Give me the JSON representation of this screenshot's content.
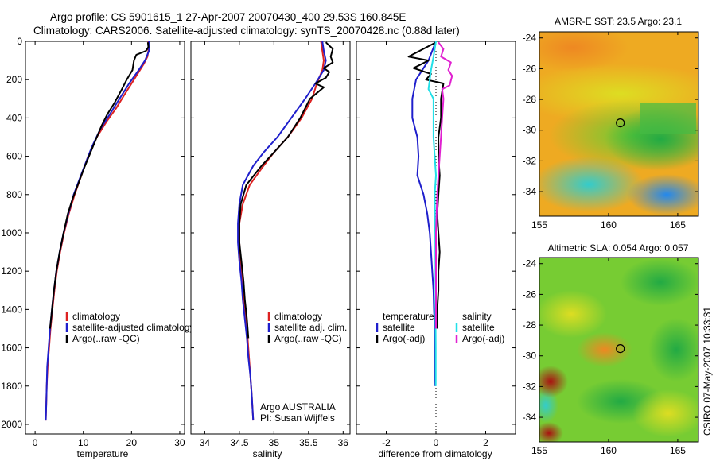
{
  "figure": {
    "title_line1": "Argo profile: CS 5901615_1 27-Apr-2007 20070430_400 29.53S 160.845E",
    "title_line2": "Climatology: CARS2006. Satellite-adjusted climatology: synTS_20070428.nc (0.88d later)",
    "side_label": "CSIRO 07-May-2007 10:33:31",
    "colors": {
      "climatology": "#dd2222",
      "satellite": "#1f1fcc",
      "argo": "#000000",
      "sal_satellite": "#22e0e8",
      "sal_argo": "#e020d0"
    }
  },
  "chart_data": [
    {
      "type": "line",
      "xlabel": "temperature",
      "xlim": [
        -2,
        31
      ],
      "ylim": [
        2050,
        0
      ],
      "xticks": [
        0,
        10,
        20,
        30
      ],
      "yticks": [
        0,
        200,
        400,
        600,
        800,
        1000,
        1200,
        1400,
        1600,
        1800,
        2000
      ],
      "y_reversed": true,
      "legend": [
        "climatology",
        "satellite-adjusted climatology",
        "Argo(..raw -QC)"
      ],
      "legend_position": "lower-right",
      "series": [
        {
          "name": "climatology",
          "color": "#dd2222",
          "points": [
            [
              23.5,
              0
            ],
            [
              23.5,
              50
            ],
            [
              23.3,
              80
            ],
            [
              22.5,
              120
            ],
            [
              20.5,
              200
            ],
            [
              18.5,
              280
            ],
            [
              16.8,
              350
            ],
            [
              14.8,
              420
            ],
            [
              12.8,
              500
            ],
            [
              11,
              600
            ],
            [
              9.6,
              700
            ],
            [
              8.2,
              800
            ],
            [
              7,
              900
            ],
            [
              6,
              1000
            ],
            [
              5.2,
              1100
            ],
            [
              4.5,
              1200
            ],
            [
              4,
              1300
            ],
            [
              3.6,
              1400
            ],
            [
              3.2,
              1500
            ],
            [
              2.9,
              1600
            ],
            [
              2.6,
              1700
            ],
            [
              2.4,
              1800
            ],
            [
              2.3,
              1900
            ],
            [
              2.2,
              1980
            ]
          ]
        },
        {
          "name": "satellite-adjusted climatology",
          "color": "#1f1fcc",
          "points": [
            [
              23.6,
              0
            ],
            [
              23.6,
              50
            ],
            [
              22.8,
              100
            ],
            [
              21.5,
              150
            ],
            [
              19.5,
              220
            ],
            [
              17.5,
              300
            ],
            [
              15.5,
              380
            ],
            [
              13.5,
              460
            ],
            [
              11.8,
              550
            ],
            [
              10.4,
              640
            ],
            [
              9.2,
              720
            ],
            [
              8,
              800
            ],
            [
              6.9,
              900
            ],
            [
              5.9,
              1000
            ],
            [
              5.1,
              1100
            ],
            [
              4.4,
              1200
            ],
            [
              3.9,
              1300
            ],
            [
              3.5,
              1400
            ],
            [
              3.1,
              1500
            ],
            [
              2.8,
              1600
            ],
            [
              2.5,
              1700
            ],
            [
              2.4,
              1800
            ],
            [
              2.3,
              1900
            ],
            [
              2.2,
              1980
            ]
          ]
        },
        {
          "name": "Argo(..raw -QC)",
          "color": "#000000",
          "points": [
            [
              23.4,
              5
            ],
            [
              23.5,
              30
            ],
            [
              23,
              50
            ],
            [
              21,
              70
            ],
            [
              20.5,
              100
            ],
            [
              20.2,
              150
            ],
            [
              19,
              200
            ],
            [
              18,
              250
            ],
            [
              16.5,
              320
            ],
            [
              15,
              380
            ],
            [
              13.8,
              440
            ],
            [
              12.8,
              500
            ],
            [
              11.5,
              580
            ],
            [
              10.2,
              660
            ],
            [
              9,
              740
            ],
            [
              7.8,
              820
            ],
            [
              6.8,
              900
            ],
            [
              5.9,
              1000
            ],
            [
              5.1,
              1100
            ],
            [
              4.4,
              1200
            ],
            [
              3.9,
              1300
            ],
            [
              3.5,
              1400
            ],
            [
              3.1,
              1500
            ]
          ]
        }
      ]
    },
    {
      "type": "line",
      "xlabel": "salinity",
      "xlim": [
        33.8,
        36.1
      ],
      "ylim": [
        2050,
        0
      ],
      "xticks": [
        34,
        34.5,
        35,
        35.5,
        36
      ],
      "y_reversed": true,
      "legend": [
        "climatology",
        "satellite adj. clim.",
        "Argo(..raw -QC)"
      ],
      "legend_position": "lower-right",
      "annotation": [
        "Argo AUSTRALIA",
        "PI: Susan Wijffels"
      ],
      "series": [
        {
          "name": "climatology",
          "color": "#dd2222",
          "points": [
            [
              35.68,
              0
            ],
            [
              35.7,
              50
            ],
            [
              35.72,
              100
            ],
            [
              35.7,
              150
            ],
            [
              35.62,
              220
            ],
            [
              35.55,
              300
            ],
            [
              35.4,
              400
            ],
            [
              35.2,
              500
            ],
            [
              35,
              580
            ],
            [
              34.85,
              650
            ],
            [
              34.65,
              750
            ],
            [
              34.55,
              850
            ],
            [
              34.5,
              950
            ],
            [
              34.5,
              1050
            ],
            [
              34.52,
              1150
            ],
            [
              34.55,
              1250
            ],
            [
              34.57,
              1350
            ],
            [
              34.6,
              1450
            ],
            [
              34.62,
              1550
            ],
            [
              34.64,
              1650
            ],
            [
              34.66,
              1750
            ],
            [
              34.68,
              1850
            ],
            [
              34.7,
              1980
            ]
          ]
        },
        {
          "name": "satellite adj. clim.",
          "color": "#1f1fcc",
          "points": [
            [
              35.7,
              0
            ],
            [
              35.72,
              50
            ],
            [
              35.75,
              100
            ],
            [
              35.72,
              150
            ],
            [
              35.6,
              220
            ],
            [
              35.45,
              300
            ],
            [
              35.25,
              400
            ],
            [
              35.05,
              500
            ],
            [
              34.85,
              580
            ],
            [
              34.7,
              650
            ],
            [
              34.55,
              750
            ],
            [
              34.5,
              850
            ],
            [
              34.48,
              950
            ],
            [
              34.48,
              1050
            ],
            [
              34.5,
              1150
            ],
            [
              34.53,
              1250
            ],
            [
              34.55,
              1350
            ],
            [
              34.58,
              1450
            ],
            [
              34.61,
              1550
            ],
            [
              34.63,
              1650
            ],
            [
              34.66,
              1750
            ],
            [
              34.68,
              1850
            ],
            [
              34.7,
              1980
            ]
          ]
        },
        {
          "name": "Argo(..raw -QC)",
          "color": "#000000",
          "points": [
            [
              35.75,
              5
            ],
            [
              35.85,
              40
            ],
            [
              35.82,
              80
            ],
            [
              35.85,
              110
            ],
            [
              35.72,
              140
            ],
            [
              35.8,
              160
            ],
            [
              35.75,
              190
            ],
            [
              35.6,
              220
            ],
            [
              35.72,
              240
            ],
            [
              35.52,
              300
            ],
            [
              35.38,
              400
            ],
            [
              35.2,
              500
            ],
            [
              35,
              580
            ],
            [
              34.82,
              650
            ],
            [
              34.6,
              750
            ],
            [
              34.52,
              850
            ],
            [
              34.5,
              950
            ],
            [
              34.5,
              1050
            ],
            [
              34.53,
              1150
            ],
            [
              34.56,
              1250
            ],
            [
              34.58,
              1350
            ],
            [
              34.61,
              1450
            ],
            [
              34.63,
              1550
            ]
          ]
        }
      ]
    },
    {
      "type": "line",
      "xlabel": "difference from climatology",
      "xlim": [
        -3.2,
        3.2
      ],
      "ylim": [
        2050,
        0
      ],
      "xticks": [
        -2,
        0,
        2
      ],
      "y_reversed": true,
      "zero_line": true,
      "legend_groups": [
        {
          "title": "temperature",
          "entries": [
            "satellite",
            "Argo(-adj)"
          ]
        },
        {
          "title": "salinity",
          "entries": [
            "satellite",
            "Argo(-adj)"
          ]
        }
      ],
      "series": [
        {
          "name": "temperature satellite",
          "color": "#1f1fcc",
          "points": [
            [
              0,
              0
            ],
            [
              -0.3,
              100
            ],
            [
              -0.8,
              200
            ],
            [
              -0.95,
              300
            ],
            [
              -0.95,
              400
            ],
            [
              -0.75,
              500
            ],
            [
              -0.7,
              600
            ],
            [
              -0.75,
              700
            ],
            [
              -0.5,
              800
            ],
            [
              -0.35,
              900
            ],
            [
              -0.25,
              1000
            ],
            [
              -0.2,
              1100
            ],
            [
              -0.15,
              1200
            ],
            [
              -0.1,
              1300
            ],
            [
              -0.08,
              1400
            ],
            [
              -0.05,
              1500
            ],
            [
              -0.05,
              1600
            ],
            [
              -0.04,
              1700
            ],
            [
              -0.03,
              1800
            ]
          ]
        },
        {
          "name": "temperature Argo(-adj)",
          "color": "#000000",
          "points": [
            [
              0,
              5
            ],
            [
              -1.1,
              80
            ],
            [
              -0.3,
              100
            ],
            [
              -0.9,
              140
            ],
            [
              -0.2,
              170
            ],
            [
              -0.4,
              200
            ],
            [
              0.3,
              220
            ],
            [
              0.2,
              300
            ],
            [
              0.2,
              400
            ],
            [
              0.1,
              500
            ],
            [
              0.1,
              600
            ],
            [
              0.15,
              700
            ],
            [
              0.1,
              800
            ],
            [
              0.05,
              900
            ],
            [
              0.1,
              1000
            ],
            [
              0.15,
              1100
            ],
            [
              0.1,
              1200
            ],
            [
              0.1,
              1300
            ],
            [
              0.05,
              1400
            ],
            [
              0.05,
              1500
            ]
          ]
        },
        {
          "name": "salinity satellite",
          "color": "#22e0e8",
          "points": [
            [
              0,
              0
            ],
            [
              -0.1,
              80
            ],
            [
              -0.2,
              150
            ],
            [
              -0.3,
              250
            ],
            [
              -0.1,
              300
            ],
            [
              -0.1,
              400
            ],
            [
              -0.1,
              500
            ],
            [
              -0.05,
              600
            ],
            [
              0,
              700
            ],
            [
              -0.05,
              800
            ],
            [
              -0.03,
              1000
            ],
            [
              -0.02,
              1200
            ],
            [
              -0.02,
              1400
            ],
            [
              -0.01,
              1600
            ],
            [
              -0.01,
              1800
            ]
          ]
        },
        {
          "name": "salinity Argo(-adj)",
          "color": "#e020d0",
          "points": [
            [
              0.1,
              5
            ],
            [
              0.3,
              40
            ],
            [
              0.2,
              80
            ],
            [
              0.6,
              110
            ],
            [
              0.5,
              150
            ],
            [
              0.65,
              180
            ],
            [
              0.55,
              230
            ],
            [
              0.25,
              250
            ],
            [
              0.3,
              300
            ],
            [
              0.25,
              400
            ],
            [
              0.2,
              500
            ],
            [
              0.15,
              600
            ],
            [
              0.1,
              700
            ],
            [
              0.05,
              800
            ],
            [
              0,
              1000
            ],
            [
              0,
              1200
            ],
            [
              0,
              1400
            ],
            [
              0,
              1500
            ]
          ]
        }
      ]
    },
    {
      "type": "heatmap",
      "title": "AMSR-E SST: 23.5 Argo: 23.1",
      "xlim": [
        155,
        166.5
      ],
      "ylim": [
        -35.6,
        -23.6
      ],
      "xticks": [
        155,
        160,
        165
      ],
      "yticks": [
        -24,
        -26,
        -28,
        -30,
        -32,
        -34
      ],
      "marker": [
        160.845,
        -29.53
      ]
    },
    {
      "type": "heatmap",
      "title": "Altimetric SLA: 0.054 Argo: 0.057",
      "xlim": [
        155,
        166.5
      ],
      "ylim": [
        -35.6,
        -23.6
      ],
      "xticks": [
        155,
        160,
        165
      ],
      "yticks": [
        -24,
        -26,
        -28,
        -30,
        -32,
        -34
      ],
      "marker": [
        160.845,
        -29.53
      ]
    }
  ]
}
